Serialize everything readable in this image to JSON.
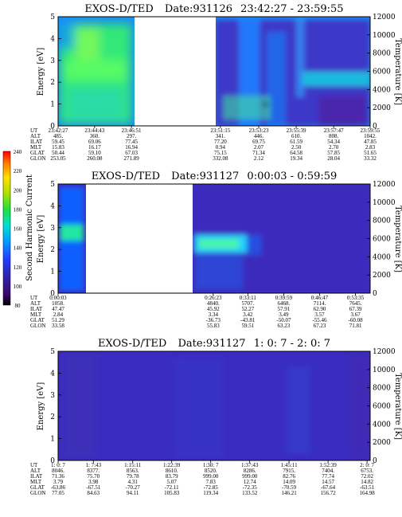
{
  "chart_data": [
    {
      "type": "heatmap",
      "title": "EXOS-D/TED",
      "date_label": "Date:931126",
      "time_range": "23:42:27 - 23:59:55",
      "ylabel": "Energy [eV]",
      "ylabel_right": "Temperature [K]",
      "ylim": [
        0,
        5
      ],
      "ylim_right": [
        0,
        12000
      ],
      "yticks": [
        "0",
        "1",
        "2",
        "3",
        "4",
        "5"
      ],
      "yticks_right": [
        "0",
        "2000",
        "4000",
        "6000",
        "8000",
        "10000",
        "12000"
      ],
      "data_gap": [
        0.245,
        0.505
      ],
      "orbit_rows": [
        "UT",
        "ALT",
        "ILAT",
        "MLT",
        "GLAT",
        "GLON"
      ],
      "orbit_columns": [
        {
          "pos": 0.0,
          "values": [
            "23:42:27",
            "485.",
            "59.45",
            "15.83",
            "50.44",
            "253.05"
          ]
        },
        {
          "pos": 0.117,
          "values": [
            "23:44:43",
            "360.",
            "69.06",
            "16.17",
            "59.10",
            "260.08"
          ]
        },
        {
          "pos": 0.235,
          "values": [
            "23:46:51",
            "297.",
            "77.45",
            "16.94",
            "67.03",
            "271.89"
          ]
        },
        {
          "pos": 0.52,
          "values": [
            "23:51:15",
            "341.",
            "77.20",
            "0.94",
            "75.15",
            "332.08"
          ]
        },
        {
          "pos": 0.643,
          "values": [
            "23:53:23",
            "446.",
            "69.75",
            "2.07",
            "71.34",
            "2.12"
          ]
        },
        {
          "pos": 0.763,
          "values": [
            "23:55:39",
            "610.",
            "61.59",
            "2.50",
            "64.58",
            "19.34"
          ]
        },
        {
          "pos": 0.883,
          "values": [
            "23:57:47",
            "808.",
            "54.34",
            "2.70",
            "57.85",
            "28.04"
          ]
        },
        {
          "pos": 1.0,
          "values": [
            "23:59:55",
            "1042.",
            "47.85",
            "2.83",
            "51.65",
            "33.32"
          ]
        }
      ]
    },
    {
      "type": "heatmap",
      "title": "EXOS-D/TED",
      "date_label": "Date:931127",
      "time_range": "0:00:03 - 0:59:59",
      "ylabel": "Energy [eV]",
      "ylabel_right": "Temperature [K]",
      "ylim": [
        0,
        5
      ],
      "ylim_right": [
        0,
        12000
      ],
      "yticks": [
        "0",
        "1",
        "2",
        "3",
        "4",
        "5"
      ],
      "yticks_right": [
        "0",
        "2000",
        "4000",
        "6000",
        "8000",
        "10000",
        "12000"
      ],
      "data_gap": [
        0.09,
        0.485
      ],
      "orbit_rows": [
        "UT",
        "ALT",
        "ILAT",
        "MLT",
        "GLAT",
        "GLON"
      ],
      "orbit_columns": [
        {
          "pos": 0.0,
          "values": [
            "0:00:03",
            "1058.",
            "47.47",
            "2.84",
            "51.29",
            "33.58"
          ]
        },
        {
          "pos": 0.497,
          "values": [
            "0:26:23",
            "4840.",
            "45.92",
            "3.34",
            "-36.73",
            "55.83"
          ]
        },
        {
          "pos": 0.608,
          "values": [
            "0:33:11",
            "5707.",
            "52.27",
            "3.42",
            "-43.81",
            "59.51"
          ]
        },
        {
          "pos": 0.723,
          "values": [
            "0:39:59",
            "6468.",
            "57.91",
            "3.49",
            "-50.07",
            "63.23"
          ]
        },
        {
          "pos": 0.838,
          "values": [
            "0:46:47",
            "7114.",
            "62.90",
            "3.57",
            "-55.46",
            "67.23"
          ]
        },
        {
          "pos": 0.953,
          "values": [
            "0:53:35",
            "7645.",
            "67.39",
            "3.67",
            "-60.08",
            "71.81"
          ]
        }
      ],
      "colorbar": {
        "label": "Second Harmonic Current",
        "ticks": [
          "80",
          "100",
          "120",
          "140",
          "160",
          "180",
          "200",
          "220",
          "240"
        ],
        "range": [
          80,
          240
        ]
      }
    },
    {
      "type": "heatmap",
      "title": "EXOS-D/TED",
      "date_label": "Date:931127",
      "time_range": "1: 0: 7 - 2: 0: 7",
      "ylabel": "Energy [eV]",
      "ylabel_right": "Temperature [K]",
      "ylim": [
        0,
        5
      ],
      "ylim_right": [
        0,
        12000
      ],
      "yticks": [
        "0",
        "1",
        "2",
        "3",
        "4",
        "5"
      ],
      "yticks_right": [
        "0",
        "2000",
        "4000",
        "6000",
        "8000",
        "10000",
        "12000"
      ],
      "data_gap": null,
      "orbit_rows": [
        "UT",
        "ALT",
        "ILAT",
        "MLT",
        "GLAT",
        "GLON"
      ],
      "orbit_columns": [
        {
          "pos": 0.0,
          "values": [
            "1: 0: 7",
            "8046.",
            "71.36",
            "3.79",
            "-63.86",
            "77.05"
          ]
        },
        {
          "pos": 0.113,
          "values": [
            "1: 7:43",
            "8377.",
            "75.70",
            "3.98",
            "-67.51",
            "84.63"
          ]
        },
        {
          "pos": 0.239,
          "values": [
            "1:15:11",
            "8563.",
            "79.78",
            "4.31",
            "-70.27",
            "94.11"
          ]
        },
        {
          "pos": 0.364,
          "values": [
            "1:22:39",
            "8610.",
            "83.79",
            "5.07",
            "-72.11",
            "105.83"
          ]
        },
        {
          "pos": 0.489,
          "values": [
            "1:30: 7",
            "8520.",
            "999.00",
            "7.83",
            "-72.85",
            "119.34"
          ]
        },
        {
          "pos": 0.614,
          "values": [
            "1:37:43",
            "8286.",
            "999.00",
            "12.74",
            "-72.35",
            "133.52"
          ]
        },
        {
          "pos": 0.74,
          "values": [
            "1:45:11",
            "7915.",
            "82.76",
            "14.09",
            "-70.59",
            "146.21"
          ]
        },
        {
          "pos": 0.865,
          "values": [
            "1:52:39",
            "7404.",
            "77.74",
            "14.57",
            "-67.64",
            "156.72"
          ]
        },
        {
          "pos": 0.99,
          "values": [
            "2: 0: 7",
            "6753.",
            "72.02",
            "14.82",
            "-63.51",
            "164.98"
          ]
        }
      ]
    }
  ]
}
